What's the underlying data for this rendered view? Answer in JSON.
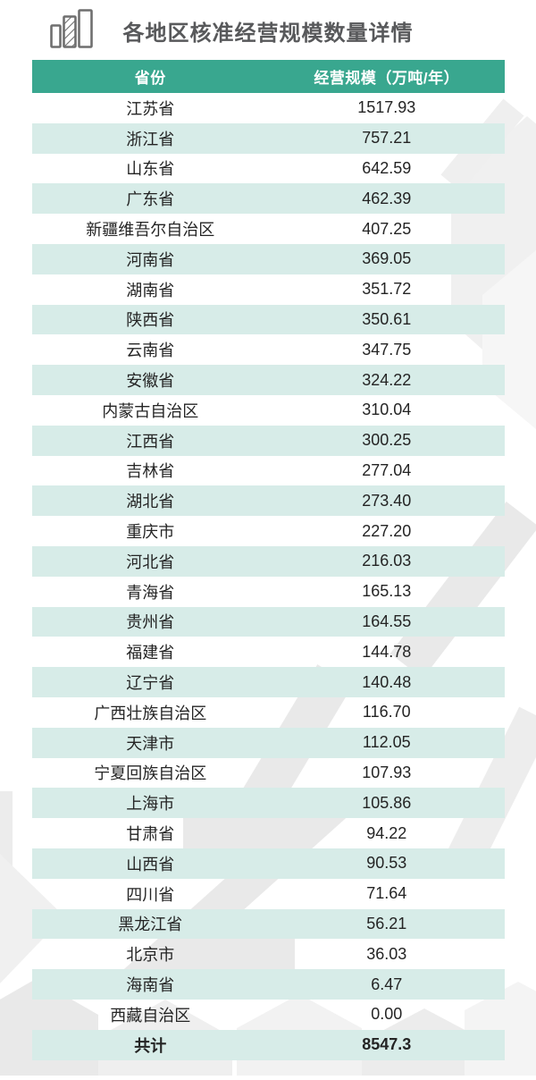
{
  "header": {
    "title": "各地区核准经营规模数量详情",
    "icon": "bar-chart-icon"
  },
  "chart_data": {
    "type": "table",
    "title": "各地区核准经营规模数量详情",
    "columns": [
      "省份",
      "经营规模（万吨/年）"
    ],
    "rows": [
      [
        "江苏省",
        "1517.93"
      ],
      [
        "浙江省",
        "757.21"
      ],
      [
        "山东省",
        "642.59"
      ],
      [
        "广东省",
        "462.39"
      ],
      [
        "新疆维吾尔自治区",
        "407.25"
      ],
      [
        "河南省",
        "369.05"
      ],
      [
        "湖南省",
        "351.72"
      ],
      [
        "陕西省",
        "350.61"
      ],
      [
        "云南省",
        "347.75"
      ],
      [
        "安徽省",
        "324.22"
      ],
      [
        "内蒙古自治区",
        "310.04"
      ],
      [
        "江西省",
        "300.25"
      ],
      [
        "吉林省",
        "277.04"
      ],
      [
        "湖北省",
        "273.40"
      ],
      [
        "重庆市",
        "227.20"
      ],
      [
        "河北省",
        "216.03"
      ],
      [
        "青海省",
        "165.13"
      ],
      [
        "贵州省",
        "164.55"
      ],
      [
        "福建省",
        "144.78"
      ],
      [
        "辽宁省",
        "140.48"
      ],
      [
        "广西壮族自治区",
        "116.70"
      ],
      [
        "天津市",
        "112.05"
      ],
      [
        "宁夏回族自治区",
        "107.93"
      ],
      [
        "上海市",
        "105.86"
      ],
      [
        "甘肃省",
        "94.22"
      ],
      [
        "山西省",
        "90.53"
      ],
      [
        "四川省",
        "71.64"
      ],
      [
        "黑龙江省",
        "56.21"
      ],
      [
        "北京市",
        "36.03"
      ],
      [
        "海南省",
        "6.47"
      ],
      [
        "西藏自治区",
        "0.00"
      ]
    ],
    "total_row": [
      "共计",
      "8547.3"
    ]
  },
  "colors": {
    "header_bg": "#39a78f",
    "row_alt_bg": "#d7ece8",
    "title_text": "#58595b",
    "cell_text": "#242424",
    "header_text": "#ffffff",
    "icon": "#6f6f6f",
    "watermark_light": "#f1f1f1",
    "watermark_mid": "#e9e9e9"
  }
}
